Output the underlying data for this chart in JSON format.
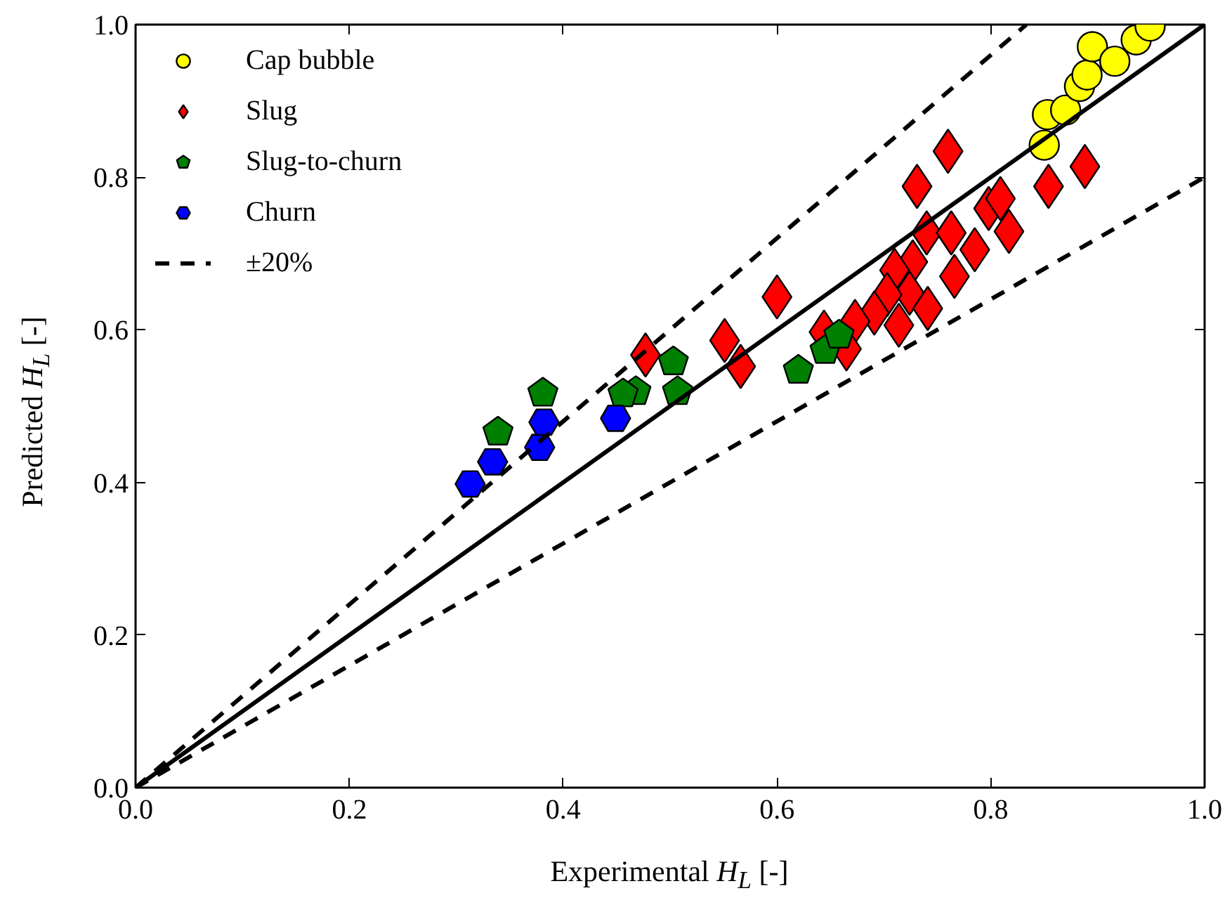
{
  "chart_data": {
    "type": "scatter",
    "xlabel": "Experimental H$_{L}$ [-]",
    "ylabel": "Predicted H$_{L}$ [-]",
    "xlim": [
      0,
      1
    ],
    "ylim": [
      0,
      1
    ],
    "xticks": [
      {
        "value": 0,
        "label": "0.0"
      },
      0.2,
      0.4,
      0.6,
      0.8,
      {
        "value": 1,
        "label": "1.0"
      }
    ],
    "yticks": [
      {
        "value": 0,
        "label": "0.0"
      },
      0.2,
      0.4,
      0.6,
      0.8,
      {
        "value": 1,
        "label": "1.0"
      }
    ],
    "grid": false,
    "legend": "top left",
    "series": [
      {
        "name": "Cap bubble",
        "color": "#ffff00",
        "marker": "circle",
        "x": [
          0.85,
          0.853,
          0.87,
          0.883,
          0.89,
          0.895,
          0.916,
          0.936,
          0.949
        ],
        "values": [
          0.842,
          0.882,
          0.888,
          0.919,
          0.934,
          0.971,
          0.952,
          0.98,
          0.998
        ]
      },
      {
        "name": "Slug",
        "color": "#ff0000",
        "marker": "diamond",
        "x": [
          0.477,
          0.551,
          0.566,
          0.6,
          0.76,
          0.731,
          0.798,
          0.809,
          0.854,
          0.888,
          0.74,
          0.763,
          0.785,
          0.817,
          0.727,
          0.71,
          0.766,
          0.724,
          0.703,
          0.691,
          0.741,
          0.673,
          0.714,
          0.644,
          0.665
        ],
        "values": [
          0.567,
          0.586,
          0.552,
          0.643,
          0.834,
          0.788,
          0.759,
          0.772,
          0.788,
          0.814,
          0.727,
          0.727,
          0.705,
          0.729,
          0.689,
          0.678,
          0.67,
          0.648,
          0.646,
          0.622,
          0.628,
          0.611,
          0.606,
          0.597,
          0.575
        ]
      },
      {
        "name": "Slug-to-churn",
        "color": "#008000",
        "x": [
          0.381,
          0.339,
          0.503,
          0.468,
          0.456,
          0.507,
          0.62,
          0.645,
          0.658
        ],
        "values": [
          0.517,
          0.466,
          0.558,
          0.519,
          0.516,
          0.519,
          0.547,
          0.573,
          0.593
        ]
      },
      {
        "name": "Churn",
        "color": "#0000ff",
        "x": [
          0.313,
          0.334,
          0.378,
          0.382,
          0.449
        ],
        "values": [
          0.398,
          0.427,
          0.446,
          0.479,
          0.484
        ]
      },
      {
        "type": "line",
        "color": "#000000",
        "line_style": "solid",
        "x": [
          0,
          1
        ],
        "values": [
          0,
          1
        ]
      },
      {
        "type": "line",
        "name": "±20%",
        "color": "#000000",
        "line_style": "dashed",
        "x": [
          0,
          0.8333
        ],
        "values": [
          0,
          1
        ]
      },
      {
        "type": "line",
        "color": "#000000",
        "line_style": "dashed",
        "x": [
          0,
          1
        ],
        "values": [
          0,
          0.8
        ]
      }
    ]
  }
}
